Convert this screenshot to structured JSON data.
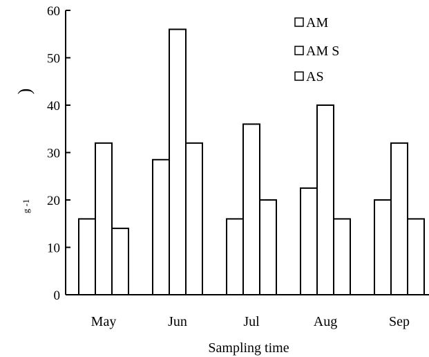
{
  "chart_data": {
    "type": "bar",
    "title": "",
    "xlabel": "Sampling time",
    "ylabel_fragments": {
      "unit": "g -1",
      "paren": ")"
    },
    "categories": [
      "May",
      "Jun",
      "Jul",
      "Aug",
      "Sep"
    ],
    "series": [
      {
        "name": "AM",
        "values": [
          16,
          28.5,
          16,
          22.5,
          20
        ]
      },
      {
        "name": "AM S",
        "values": [
          32,
          56,
          36,
          40,
          32
        ]
      },
      {
        "name": "AS",
        "values": [
          14,
          32,
          20,
          16,
          16
        ]
      }
    ],
    "ylim": [
      0,
      60
    ],
    "yticks": [
      0,
      10,
      20,
      30,
      40,
      50,
      60
    ],
    "grid": false,
    "legend_position": "top-right",
    "bar_fill": "#ffffff",
    "bar_stroke": "#000000"
  }
}
